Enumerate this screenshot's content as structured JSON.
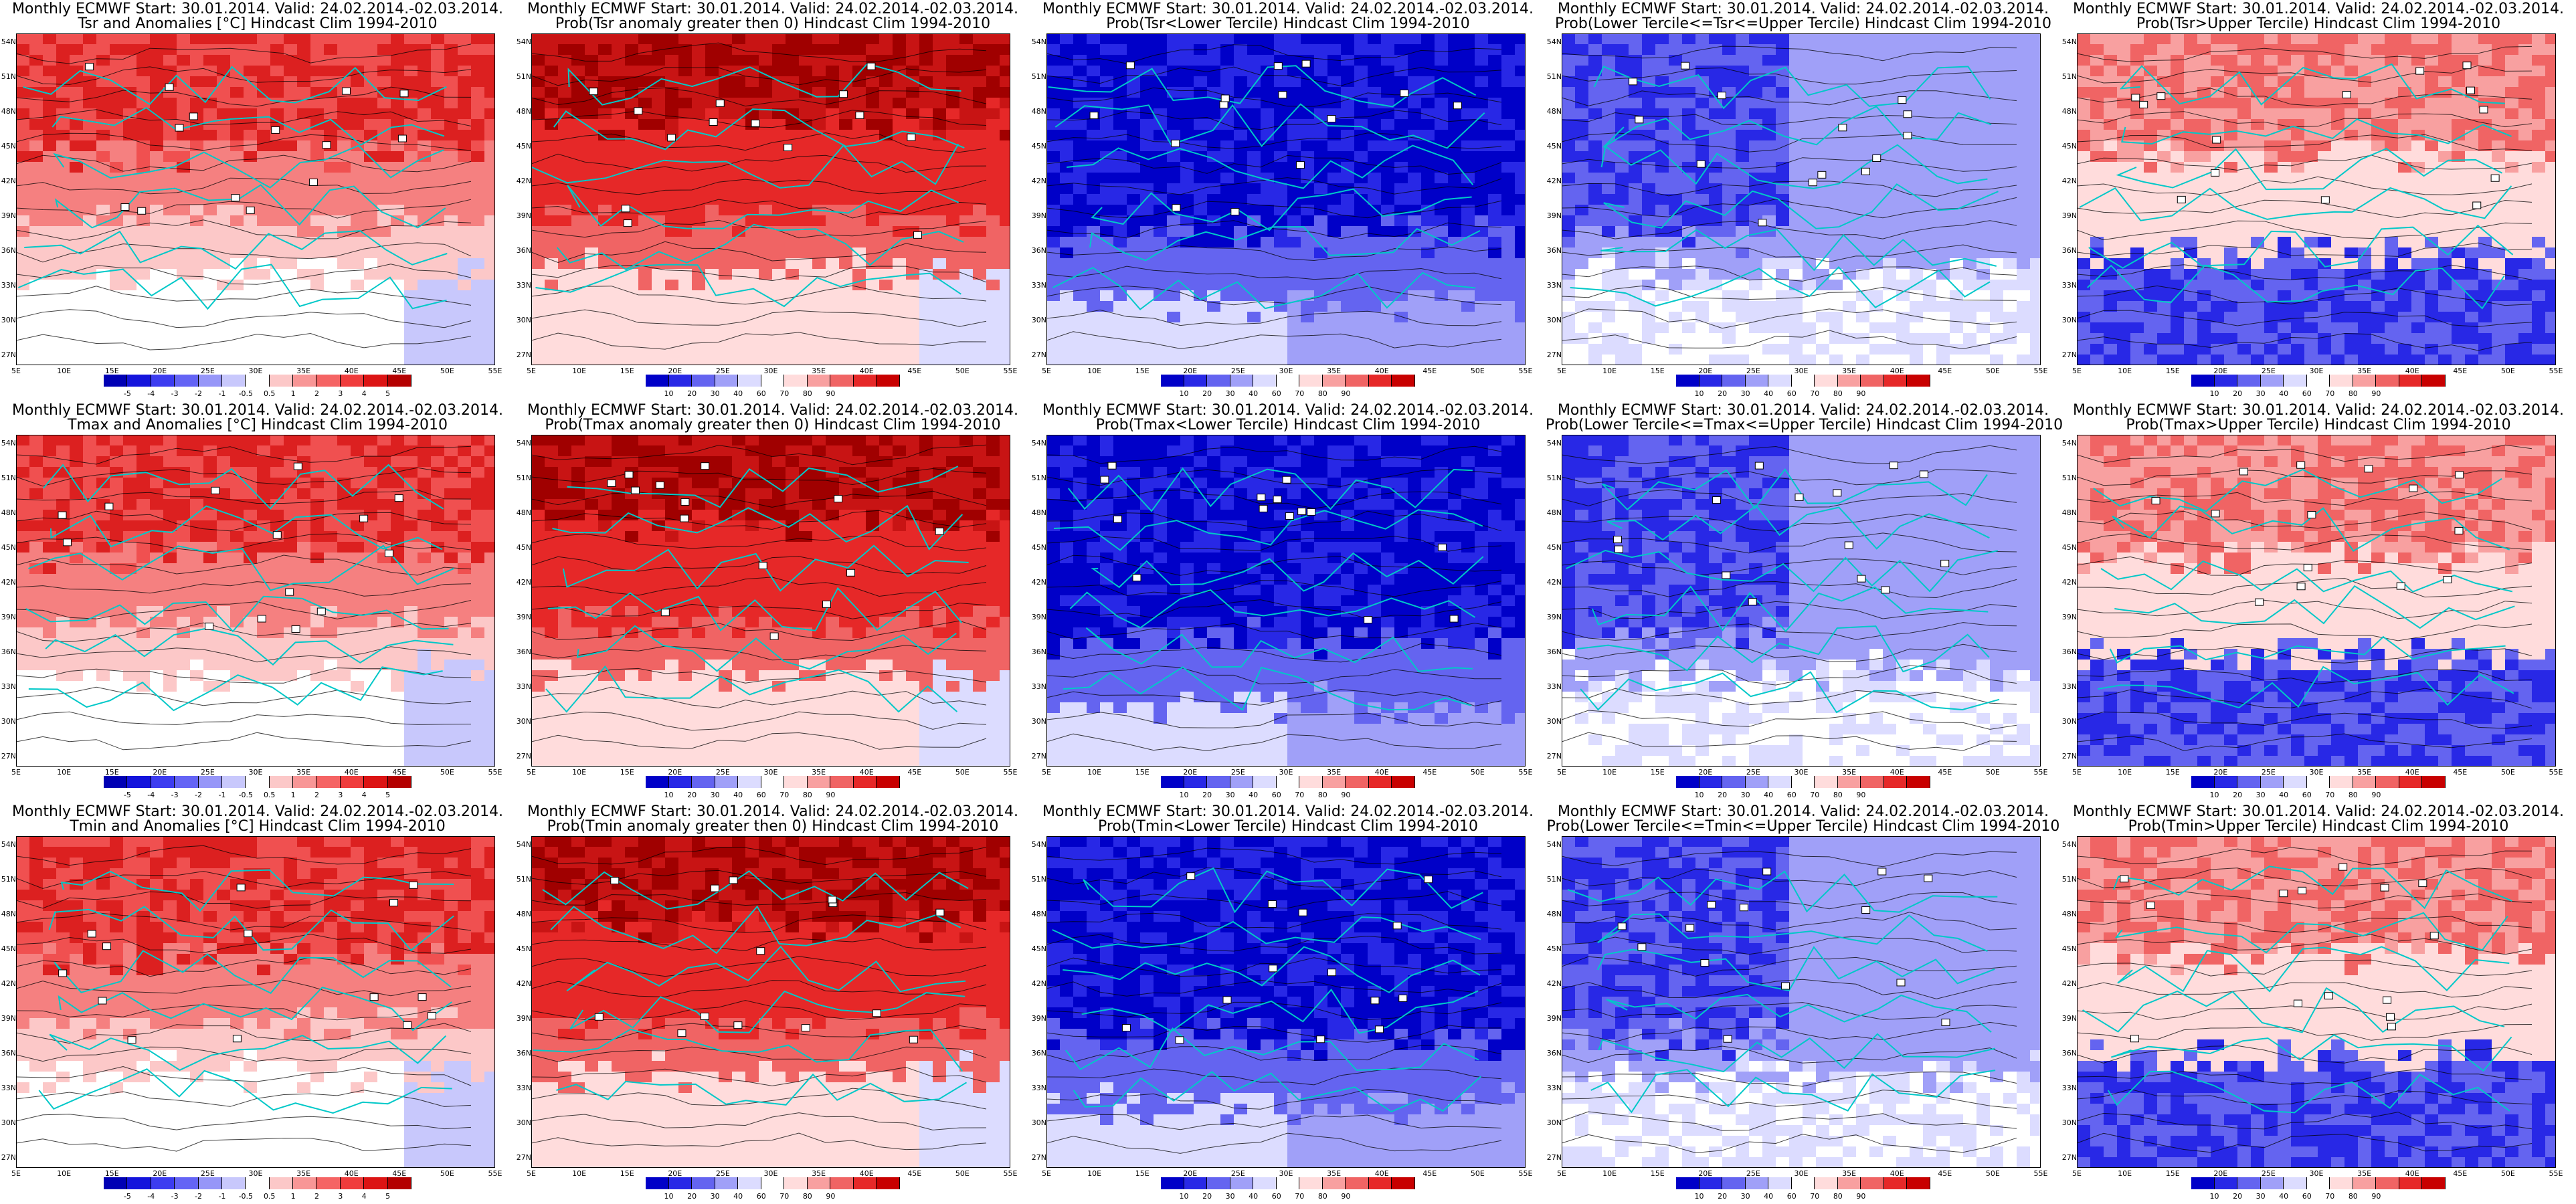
{
  "page": {
    "bg": "#ffffff"
  },
  "map": {
    "lat_labels": [
      "54N",
      "51N",
      "48N",
      "45N",
      "42N",
      "39N",
      "36N",
      "33N",
      "30N",
      "27N"
    ],
    "lon_labels": [
      "5E",
      "10E",
      "15E",
      "20E",
      "25E",
      "30E",
      "35E",
      "40E",
      "45E",
      "50E",
      "55E"
    ],
    "colors": {
      "coast": "#00c8c8",
      "contour": "#000000",
      "frame": "#000000"
    }
  },
  "colorbars": {
    "anomaly": {
      "ticks": [
        "-5",
        "-4",
        "-3",
        "-2",
        "-1",
        "-0.5",
        "0.5",
        "1",
        "2",
        "3",
        "4",
        "5"
      ],
      "colors": [
        "#0000b4",
        "#1414dc",
        "#3c3cf0",
        "#6464f5",
        "#9696f8",
        "#c8c8fc",
        "#ffffff",
        "#fcc8c8",
        "#f89696",
        "#f56464",
        "#f03c3c",
        "#dc1414",
        "#b40000"
      ]
    },
    "probability": {
      "ticks": [
        "10",
        "20",
        "30",
        "40",
        "60",
        "70",
        "80",
        "90"
      ],
      "colors": [
        "#0000c8",
        "#2828e6",
        "#6464f0",
        "#a0a0f8",
        "#dcdcff",
        "#ffffff",
        "#ffdcdc",
        "#f8a0a0",
        "#f06464",
        "#e62828",
        "#c80000"
      ]
    }
  },
  "panels": [
    {
      "title1": "Monthly ECMWF Start: 30.01.2014. Valid: 24.02.2014.-02.03.2014.",
      "title2": "Tsr and Anomalies [°C] Hindcast Clim 1994-2010",
      "kind": "anomaly",
      "scheme": "warmN",
      "bar": "anomaly"
    },
    {
      "title1": "Monthly ECMWF Start: 30.01.2014. Valid: 24.02.2014.-02.03.2014.",
      "title2": "Prob(Tsr anomaly greater then 0) Hindcast Clim 1994-2010",
      "kind": "prob",
      "scheme": "hotN",
      "bar": "probability"
    },
    {
      "title1": "Monthly ECMWF Start: 30.01.2014. Valid: 24.02.2014.-02.03.2014.",
      "title2": "Prob(Tsr<Lower Tercile) Hindcast Clim 1994-2010",
      "kind": "prob",
      "scheme": "cold",
      "bar": "probability"
    },
    {
      "title1": "Monthly ECMWF Start: 30.01.2014. Valid: 24.02.2014.-02.03.2014.",
      "title2": "Prob(Lower Tercile<=Tsr<=Upper Tercile) Hindcast Clim 1994-2010",
      "kind": "prob",
      "scheme": "mid",
      "bar": "probability"
    },
    {
      "title1": "Monthly ECMWF Start: 30.01.2014. Valid: 24.02.2014.-02.03.2014.",
      "title2": "Prob(Tsr>Upper Tercile) Hindcast Clim 1994-2010",
      "kind": "prob",
      "scheme": "upper",
      "bar": "probability"
    },
    {
      "title1": "Monthly ECMWF Start: 30.01.2014. Valid: 24.02.2014.-02.03.2014.",
      "title2": "Tmax and Anomalies [°C] Hindcast Clim 1994-2010",
      "kind": "anomaly",
      "scheme": "warmN",
      "bar": "anomaly"
    },
    {
      "title1": "Monthly ECMWF Start: 30.01.2014. Valid: 24.02.2014.-02.03.2014.",
      "title2": "Prob(Tmax anomaly greater then 0) Hindcast Clim 1994-2010",
      "kind": "prob",
      "scheme": "hotN",
      "bar": "probability"
    },
    {
      "title1": "Monthly ECMWF Start: 30.01.2014. Valid: 24.02.2014.-02.03.2014.",
      "title2": "Prob(Tmax<Lower Tercile) Hindcast Clim 1994-2010",
      "kind": "prob",
      "scheme": "cold",
      "bar": "probability"
    },
    {
      "title1": "Monthly ECMWF Start: 30.01.2014. Valid: 24.02.2014.-02.03.2014.",
      "title2": "Prob(Lower Tercile<=Tmax<=Upper Tercile) Hindcast Clim 1994-2010",
      "kind": "prob",
      "scheme": "mid",
      "bar": "probability"
    },
    {
      "title1": "Monthly ECMWF Start: 30.01.2014. Valid: 24.02.2014.-02.03.2014.",
      "title2": "Prob(Tmax>Upper Tercile) Hindcast Clim 1994-2010",
      "kind": "prob",
      "scheme": "upper",
      "bar": "probability"
    },
    {
      "title1": "Monthly ECMWF Start: 30.01.2014. Valid: 24.02.2014.-02.03.2014.",
      "title2": "Tmin and Anomalies [°C] Hindcast Clim 1994-2010",
      "kind": "anomaly",
      "scheme": "warmN",
      "bar": "anomaly"
    },
    {
      "title1": "Monthly ECMWF Start: 30.01.2014. Valid: 24.02.2014.-02.03.2014.",
      "title2": "Prob(Tmin anomaly greater then 0) Hindcast Clim 1994-2010",
      "kind": "prob",
      "scheme": "hotN",
      "bar": "probability"
    },
    {
      "title1": "Monthly ECMWF Start: 30.01.2014. Valid: 24.02.2014.-02.03.2014.",
      "title2": "Prob(Tmin<Lower Tercile) Hindcast Clim 1994-2010",
      "kind": "prob",
      "scheme": "cold",
      "bar": "probability"
    },
    {
      "title1": "Monthly ECMWF Start: 30.01.2014. Valid: 24.02.2014.-02.03.2014.",
      "title2": "Prob(Lower Tercile<=Tmin<=Upper Tercile) Hindcast Clim 1994-2010",
      "kind": "prob",
      "scheme": "mid",
      "bar": "probability"
    },
    {
      "title1": "Monthly ECMWF Start: 30.01.2014. Valid: 24.02.2014.-02.03.2014.",
      "title2": "Prob(Tmin>Upper Tercile) Hindcast Clim 1994-2010",
      "kind": "prob",
      "scheme": "upper",
      "bar": "probability"
    }
  ]
}
